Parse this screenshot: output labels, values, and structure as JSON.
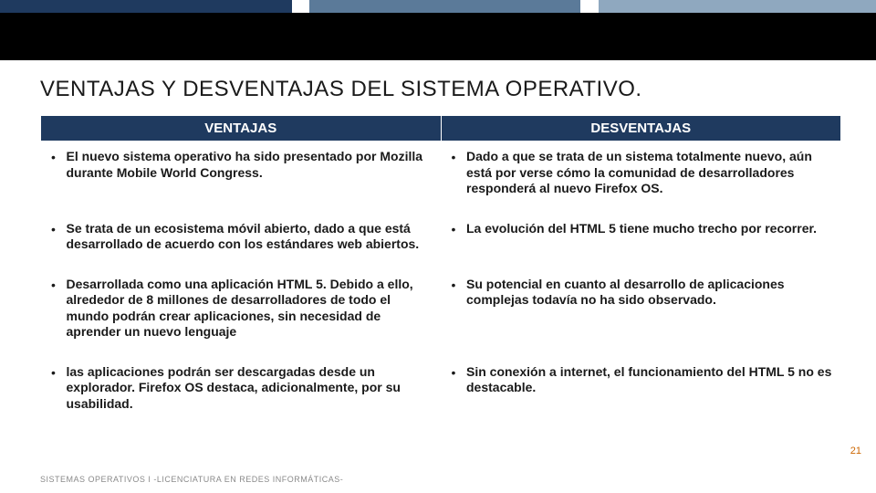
{
  "stripe_colors": [
    "#1f3a5f",
    "#5b7a99",
    "#8fa8bf"
  ],
  "title": "VENTAJAS Y DESVENTAJAS DEL SISTEMA OPERATIVO.",
  "table": {
    "headers": [
      "VENTAJAS",
      "DESVENTAJAS"
    ],
    "header_bg": "#1f3a5f",
    "header_fg": "#ffffff",
    "rows": [
      {
        "left": "El nuevo sistema operativo ha sido presentado por Mozilla durante Mobile World Congress.",
        "right": "Dado a que se trata de un sistema totalmente nuevo, aún está por verse cómo la comunidad de desarrolladores responderá al nuevo Firefox OS."
      },
      {
        "left": "Se trata de un ecosistema móvil abierto, dado a que está desarrollado de acuerdo con los estándares web abiertos.",
        "right": " La evolución del HTML 5 tiene mucho trecho por recorrer."
      },
      {
        "left": " Desarrollada como una aplicación HTML 5. Debido a ello, alrededor de 8 millones de desarrolladores de todo el mundo podrán crear aplicaciones, sin necesidad de aprender un nuevo lenguaje",
        "right": "Su potencial en cuanto al desarrollo de aplicaciones complejas todavía no ha sido observado."
      },
      {
        "left": " las aplicaciones podrán ser descargadas desde un explorador. Firefox OS destaca, adicionalmente, por su usabilidad.",
        "right": "Sin conexión a internet, el funcionamiento del HTML 5 no es destacable."
      }
    ]
  },
  "footer": "SISTEMAS OPERATIVOS I -LICENCIATURA EN REDES INFORMÁTICAS-",
  "page_number": "21"
}
